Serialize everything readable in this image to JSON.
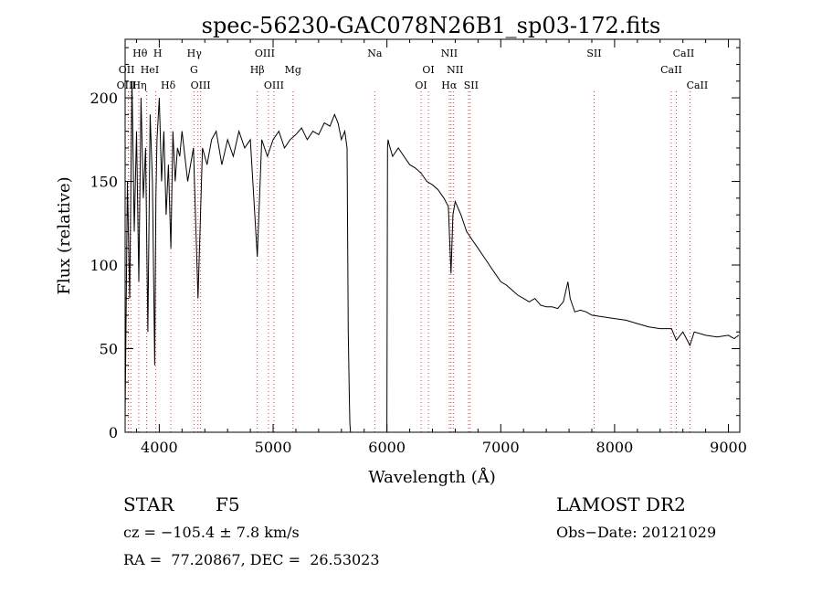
{
  "chart_data": {
    "type": "line",
    "title": "spec-56230-GAC078N26B1_sp03-172.fits",
    "xlabel": "Wavelength (Å)",
    "ylabel": "Flux (relative)",
    "xlim": [
      3700,
      9100
    ],
    "ylim": [
      0,
      235
    ],
    "xticks": [
      4000,
      5000,
      6000,
      7000,
      8000,
      9000
    ],
    "xtick_labels": [
      "4000",
      "5000",
      "6000",
      "7000",
      "8000",
      "9000"
    ],
    "yticks": [
      0,
      50,
      100,
      150,
      200
    ],
    "ytick_labels": [
      "0",
      "50",
      "100",
      "150",
      "200"
    ],
    "grid": false,
    "legend": "none",
    "series": [
      {
        "x": [
          3700,
          3720,
          3740,
          3760,
          3780,
          3800,
          3820,
          3840,
          3860,
          3880,
          3900,
          3920,
          3940,
          3960,
          3970,
          3980,
          4000,
          4020,
          4040,
          4060,
          4080,
          4102,
          4120,
          4140,
          4160,
          4180,
          4200,
          4250,
          4300,
          4340,
          4380,
          4420,
          4460,
          4500,
          4550,
          4600,
          4650,
          4700,
          4750,
          4800,
          4861,
          4900,
          4950,
          5000,
          5050,
          5100,
          5150,
          5200,
          5250,
          5300,
          5350,
          5400,
          5450,
          5500,
          5540,
          5570,
          5600,
          5630,
          5650,
          5660,
          5670,
          5675,
          5680,
          5690,
          6000,
          6005,
          6010,
          6020,
          6050,
          6100,
          6150,
          6200,
          6250,
          6300,
          6350,
          6400,
          6450,
          6500,
          6540,
          6563,
          6580,
          6600,
          6650,
          6700,
          6750,
          6800,
          6850,
          6900,
          6950,
          7000,
          7050,
          7100,
          7150,
          7200,
          7250,
          7300,
          7350,
          7400,
          7450,
          7500,
          7550,
          7590,
          7610,
          7630,
          7650,
          7700,
          7750,
          7800,
          7900,
          8000,
          8100,
          8200,
          8300,
          8400,
          8500,
          8542,
          8600,
          8662,
          8700,
          8800,
          8900,
          9000,
          9050,
          9090
        ],
        "y": [
          10,
          150,
          80,
          210,
          120,
          180,
          90,
          200,
          140,
          170,
          60,
          190,
          150,
          40,
          140,
          175,
          200,
          150,
          180,
          130,
          160,
          110,
          180,
          150,
          170,
          165,
          180,
          150,
          170,
          80,
          170,
          160,
          175,
          180,
          160,
          175,
          165,
          180,
          170,
          175,
          105,
          175,
          165,
          175,
          180,
          170,
          175,
          178,
          182,
          175,
          180,
          178,
          185,
          183,
          190,
          185,
          175,
          180,
          170,
          60,
          20,
          5,
          0,
          0,
          0,
          170,
          175,
          172,
          165,
          170,
          165,
          160,
          158,
          155,
          150,
          148,
          145,
          140,
          135,
          95,
          130,
          138,
          130,
          120,
          115,
          110,
          105,
          100,
          95,
          90,
          88,
          85,
          82,
          80,
          78,
          80,
          76,
          75,
          75,
          74,
          78,
          90,
          80,
          76,
          72,
          73,
          72,
          70,
          69,
          68,
          67,
          65,
          63,
          62,
          62,
          55,
          60,
          52,
          60,
          58,
          57,
          58,
          56,
          58
        ]
      }
    ],
    "line_marks": [
      {
        "x": 3729,
        "label": "OII",
        "row": 1,
        "dx": -2
      },
      {
        "x": 3729,
        "label": "OIII",
        "row": 2,
        "dx": -2
      },
      {
        "x": 3750,
        "label": "Hθ",
        "row": 0,
        "dx": 10
      },
      {
        "x": 3820,
        "label": "HeI",
        "row": 1,
        "dx": 12
      },
      {
        "x": 3889,
        "label": "Hη",
        "row": 2,
        "dx": -8
      },
      {
        "x": 3970,
        "label": "H",
        "row": 0,
        "dx": 2
      },
      {
        "x": 4102,
        "label": "Hδ",
        "row": 2,
        "dx": -3
      },
      {
        "x": 4305,
        "label": "G",
        "row": 1,
        "dx": 0
      },
      {
        "x": 4340,
        "label": "Hγ",
        "row": 0,
        "dx": -4
      },
      {
        "x": 4363,
        "label": "OIII",
        "row": 2,
        "dx": 0
      },
      {
        "x": 4861,
        "label": "Hβ",
        "row": 1,
        "dx": 0
      },
      {
        "x": 4959,
        "label": "OIII",
        "row": 0,
        "dx": -4
      },
      {
        "x": 5007,
        "label": "OIII",
        "row": 2,
        "dx": 0
      },
      {
        "x": 5175,
        "label": "Mg",
        "row": 1,
        "dx": 0
      },
      {
        "x": 5893,
        "label": "Na",
        "row": 0,
        "dx": 0
      },
      {
        "x": 6300,
        "label": "OI",
        "row": 2,
        "dx": 0
      },
      {
        "x": 6364,
        "label": "OI",
        "row": 1,
        "dx": 0
      },
      {
        "x": 6548,
        "label": "NII",
        "row": 0,
        "dx": 0
      },
      {
        "x": 6563,
        "label": "Hα",
        "row": 2,
        "dx": -2
      },
      {
        "x": 6583,
        "label": "NII",
        "row": 1,
        "dx": 2
      },
      {
        "x": 6716,
        "label": "SII",
        "row": 2,
        "dx": 3
      },
      {
        "x": 6731,
        "label": "",
        "row": 2,
        "dx": 0
      },
      {
        "x": 7820,
        "label": "SII",
        "row": 0,
        "dx": 0
      },
      {
        "x": 8498,
        "label": "CaII",
        "row": 1,
        "dx": 0
      },
      {
        "x": 8542,
        "label": "CaII",
        "row": 0,
        "dx": 8
      },
      {
        "x": 8662,
        "label": "CaII",
        "row": 2,
        "dx": 8
      }
    ]
  },
  "info": {
    "object_class": "STAR",
    "subclass": "F5",
    "survey": "LAMOST DR2",
    "redshift_line": "cz = −105.4 ± 7.8 km/s",
    "obs_date_line": "Obs−Date: 20121029",
    "coords_line": "RA =  77.20867, DEC =  26.53023"
  }
}
